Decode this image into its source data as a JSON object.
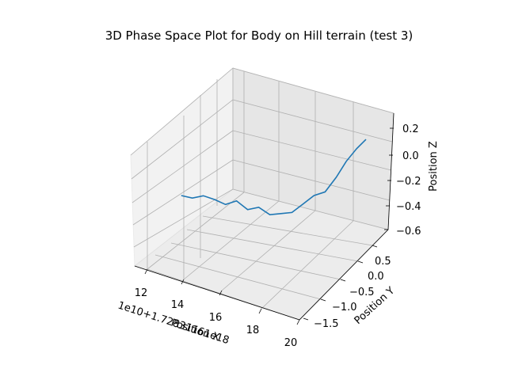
{
  "chart_data": {
    "type": "line",
    "title": "3D Phase Space Plot for Body on Hill terrain (test 3)",
    "xlabel": "Position X",
    "ylabel": "Position Y",
    "zlabel": "Position Z",
    "x_offset_text": "1e10+1.72831161e18",
    "x_ticks": [
      "12",
      "14",
      "16",
      "18",
      "20"
    ],
    "y_ticks": [
      "0.5",
      "0.0",
      "−0.5",
      "−1.0",
      "−1.5"
    ],
    "z_ticks": [
      "0.2",
      "0.0",
      "−0.2",
      "−0.4",
      "−0.6"
    ],
    "grid": true,
    "series": [
      {
        "color": "#1f77b4",
        "x": [
          11.5,
          12.0,
          12.5,
          13.0,
          13.5,
          14.0,
          14.5,
          15.0,
          15.5,
          16.0,
          16.5,
          17.0,
          17.5,
          18.0,
          18.5,
          19.0,
          19.5,
          20.0
        ],
        "y": [
          -0.6,
          -0.55,
          -0.5,
          -0.45,
          -0.4,
          -0.35,
          -0.3,
          -0.25,
          -0.2,
          -0.15,
          -0.1,
          -0.05,
          0.0,
          0.05,
          0.1,
          0.12,
          0.15,
          0.15
        ],
        "z": [
          -0.35,
          -0.36,
          -0.33,
          -0.35,
          -0.38,
          -0.34,
          -0.4,
          -0.37,
          -0.42,
          -0.4,
          -0.38,
          -0.3,
          -0.22,
          -0.18,
          -0.05,
          0.1,
          0.22,
          0.32
        ]
      }
    ]
  }
}
